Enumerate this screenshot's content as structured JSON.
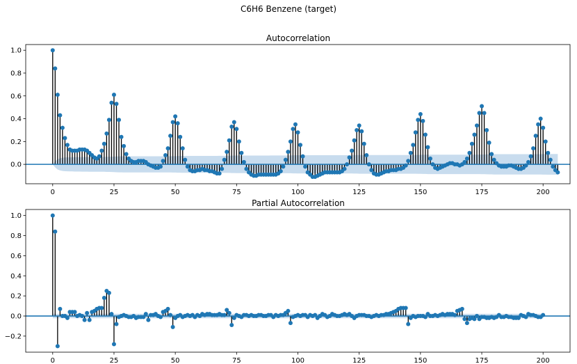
{
  "suptitle": "C6H6 Benzene (target)",
  "colors": {
    "marker": "#1f77b4",
    "stem": "#000000",
    "confidence_band": "#c2d8ec",
    "zero_line": "#1f77b4",
    "axes_frame": "#000000"
  },
  "chart_data": [
    {
      "type": "stem",
      "title": "Autocorrelation",
      "xlabel": "",
      "ylabel": "",
      "xlim": [
        -11,
        211
      ],
      "ylim": [
        -0.17,
        1.05
      ],
      "xticks": [
        0,
        25,
        50,
        75,
        100,
        125,
        150,
        175,
        200
      ],
      "yticks": [
        -0.0,
        0.2,
        0.4,
        0.6,
        0.8,
        1.0
      ],
      "ytick_labels": [
        "0.0",
        "0.2",
        "0.4",
        "0.6",
        "0.8",
        "1.0"
      ],
      "grid": false,
      "x_start": 0,
      "values": [
        1.0,
        0.84,
        0.61,
        0.43,
        0.32,
        0.23,
        0.17,
        0.13,
        0.12,
        0.12,
        0.12,
        0.13,
        0.13,
        0.13,
        0.12,
        0.1,
        0.08,
        0.06,
        0.05,
        0.07,
        0.12,
        0.18,
        0.27,
        0.39,
        0.54,
        0.61,
        0.53,
        0.39,
        0.24,
        0.16,
        0.09,
        0.05,
        0.03,
        0.02,
        0.02,
        0.03,
        0.03,
        0.03,
        0.02,
        0.0,
        -0.01,
        -0.02,
        -0.03,
        -0.03,
        -0.02,
        0.03,
        0.08,
        0.14,
        0.25,
        0.37,
        0.42,
        0.36,
        0.24,
        0.14,
        0.04,
        -0.02,
        -0.05,
        -0.06,
        -0.06,
        -0.05,
        -0.05,
        -0.04,
        -0.05,
        -0.05,
        -0.06,
        -0.06,
        -0.07,
        -0.08,
        -0.08,
        -0.04,
        0.04,
        0.11,
        0.21,
        0.33,
        0.37,
        0.31,
        0.2,
        0.1,
        0.02,
        -0.04,
        -0.07,
        -0.09,
        -0.1,
        -0.1,
        -0.09,
        -0.09,
        -0.09,
        -0.09,
        -0.09,
        -0.09,
        -0.09,
        -0.09,
        -0.08,
        -0.06,
        -0.02,
        0.04,
        0.11,
        0.2,
        0.31,
        0.35,
        0.28,
        0.17,
        0.07,
        -0.02,
        -0.07,
        -0.09,
        -0.11,
        -0.11,
        -0.1,
        -0.09,
        -0.08,
        -0.07,
        -0.07,
        -0.07,
        -0.07,
        -0.07,
        -0.07,
        -0.07,
        -0.06,
        -0.04,
        0.0,
        0.06,
        0.12,
        0.21,
        0.3,
        0.34,
        0.29,
        0.18,
        0.08,
        0.0,
        -0.05,
        -0.08,
        -0.09,
        -0.09,
        -0.08,
        -0.07,
        -0.06,
        -0.06,
        -0.05,
        -0.05,
        -0.05,
        -0.04,
        -0.04,
        -0.03,
        -0.01,
        0.03,
        0.1,
        0.17,
        0.28,
        0.39,
        0.44,
        0.38,
        0.26,
        0.15,
        0.05,
        0.0,
        -0.03,
        -0.04,
        -0.03,
        -0.02,
        -0.01,
        0.0,
        0.01,
        0.01,
        0.0,
        0.0,
        -0.01,
        0.0,
        0.02,
        0.05,
        0.1,
        0.18,
        0.26,
        0.34,
        0.45,
        0.51,
        0.45,
        0.3,
        0.19,
        0.09,
        0.04,
        0.01,
        -0.01,
        -0.02,
        -0.02,
        -0.02,
        -0.01,
        -0.01,
        -0.02,
        -0.03,
        -0.04,
        -0.04,
        -0.03,
        -0.01,
        0.02,
        0.07,
        0.14,
        0.25,
        0.35,
        0.4,
        0.32,
        0.2,
        0.1,
        0.04,
        -0.02,
        -0.05,
        -0.07
      ],
      "confidence_upper": [
        0.0,
        0.027,
        0.045,
        0.053,
        0.058,
        0.06,
        0.061,
        0.062,
        0.062,
        0.063,
        0.063,
        0.063,
        0.064,
        0.064,
        0.064,
        0.065,
        0.065,
        0.065,
        0.065,
        0.065,
        0.065,
        0.065,
        0.066,
        0.066,
        0.067,
        0.068,
        0.069,
        0.07,
        0.07,
        0.071,
        0.071,
        0.071,
        0.071,
        0.071,
        0.071,
        0.071,
        0.071,
        0.071,
        0.071,
        0.071,
        0.071,
        0.071,
        0.071,
        0.071,
        0.071,
        0.071,
        0.071,
        0.071,
        0.071,
        0.072,
        0.072,
        0.073,
        0.073,
        0.074,
        0.074,
        0.074,
        0.074,
        0.074,
        0.074,
        0.074,
        0.074,
        0.074,
        0.074,
        0.074,
        0.074,
        0.074,
        0.074,
        0.074,
        0.075,
        0.075,
        0.075,
        0.075,
        0.075,
        0.076,
        0.076,
        0.077,
        0.077,
        0.077,
        0.077,
        0.077,
        0.077,
        0.077,
        0.077,
        0.077,
        0.077,
        0.077,
        0.077,
        0.077,
        0.077,
        0.078,
        0.078,
        0.078,
        0.078,
        0.078,
        0.078,
        0.078,
        0.078,
        0.078,
        0.079,
        0.079,
        0.08,
        0.08,
        0.08,
        0.08,
        0.08,
        0.08,
        0.08,
        0.08,
        0.08,
        0.08,
        0.08,
        0.08,
        0.08,
        0.08,
        0.08,
        0.08,
        0.08,
        0.08,
        0.08,
        0.08,
        0.08,
        0.08,
        0.08,
        0.081,
        0.081,
        0.082,
        0.082,
        0.082,
        0.082,
        0.082,
        0.082,
        0.082,
        0.082,
        0.082,
        0.082,
        0.082,
        0.082,
        0.082,
        0.082,
        0.082,
        0.082,
        0.082,
        0.082,
        0.082,
        0.082,
        0.082,
        0.082,
        0.082,
        0.082,
        0.083,
        0.083,
        0.084,
        0.084,
        0.085,
        0.085,
        0.085,
        0.085,
        0.085,
        0.085,
        0.085,
        0.085,
        0.085,
        0.085,
        0.085,
        0.085,
        0.085,
        0.085,
        0.085,
        0.085,
        0.085,
        0.085,
        0.085,
        0.085,
        0.085,
        0.085,
        0.086,
        0.086,
        0.087,
        0.088,
        0.088,
        0.089,
        0.089,
        0.089,
        0.089,
        0.089,
        0.089,
        0.089,
        0.089,
        0.089,
        0.089,
        0.089,
        0.089,
        0.089,
        0.089,
        0.089,
        0.089,
        0.089,
        0.089,
        0.089,
        0.089,
        0.09,
        0.09,
        0.091,
        0.091,
        0.091,
        0.091,
        0.091,
        0.091,
        0.091,
        0.091
      ]
    },
    {
      "type": "stem",
      "title": "Partial Autocorrelation",
      "xlabel": "",
      "ylabel": "",
      "xlim": [
        -11,
        211
      ],
      "ylim": [
        -0.36,
        1.06
      ],
      "xticks": [
        0,
        25,
        50,
        75,
        100,
        125,
        150,
        175,
        200
      ],
      "yticks": [
        -0.2,
        0.0,
        0.2,
        0.4,
        0.6,
        0.8,
        1.0
      ],
      "ytick_labels": [
        "−0.2",
        "0.0",
        "0.2",
        "0.4",
        "0.6",
        "0.8",
        "1.0"
      ],
      "grid": false,
      "x_start": 0,
      "values": [
        1.0,
        0.84,
        -0.3,
        0.07,
        0.0,
        0.0,
        -0.02,
        0.04,
        0.04,
        0.04,
        0.0,
        0.01,
        0.0,
        -0.04,
        0.03,
        -0.04,
        0.04,
        0.05,
        0.07,
        0.08,
        0.08,
        0.18,
        0.25,
        0.23,
        0.02,
        -0.28,
        -0.08,
        -0.01,
        0.0,
        0.01,
        0.0,
        -0.01,
        -0.01,
        0.0,
        -0.02,
        -0.01,
        -0.01,
        -0.01,
        0.02,
        -0.04,
        0.01,
        0.01,
        0.02,
        0.0,
        -0.01,
        0.04,
        0.05,
        0.07,
        0.01,
        -0.11,
        -0.02,
        0.0,
        0.01,
        -0.01,
        0.0,
        0.01,
        0.0,
        0.01,
        -0.01,
        0.01,
        0.0,
        0.02,
        0.01,
        0.02,
        0.02,
        0.01,
        0.01,
        0.01,
        0.02,
        0.01,
        0.01,
        0.06,
        0.03,
        -0.09,
        -0.02,
        0.01,
        0.0,
        -0.01,
        0.01,
        0.01,
        0.0,
        0.01,
        0.0,
        0.0,
        0.01,
        0.01,
        0.0,
        0.0,
        0.01,
        0.01,
        -0.01,
        0.01,
        0.0,
        0.01,
        0.01,
        0.03,
        0.05,
        -0.07,
        -0.01,
        0.0,
        0.01,
        0.0,
        0.01,
        0.01,
        -0.01,
        0.01,
        0.0,
        0.01,
        -0.02,
        0.0,
        0.02,
        0.01,
        -0.01,
        0.0,
        0.02,
        0.01,
        0.0,
        0.0,
        0.01,
        0.02,
        0.01,
        0.02,
        0.0,
        -0.02,
        0.0,
        0.01,
        0.01,
        0.01,
        0.0,
        0.0,
        -0.01,
        0.0,
        0.01,
        0.0,
        0.01,
        0.01,
        0.02,
        0.02,
        0.03,
        0.04,
        0.05,
        0.07,
        0.08,
        0.08,
        0.08,
        -0.08,
        -0.02,
        0.0,
        -0.01,
        0.0,
        0.0,
        0.0,
        -0.01,
        0.02,
        0.0,
        0.0,
        0.01,
        0.0,
        0.01,
        0.02,
        0.01,
        0.02,
        0.02,
        0.02,
        0.01,
        0.05,
        0.06,
        0.07,
        -0.03,
        -0.07,
        -0.03,
        -0.02,
        -0.03,
        0.0,
        -0.03,
        -0.01,
        -0.01,
        -0.02,
        -0.02,
        -0.01,
        -0.02,
        -0.01,
        0.01,
        -0.01,
        -0.01,
        0.0,
        -0.01,
        -0.01,
        -0.02,
        -0.02,
        -0.02,
        0.01,
        0.0,
        -0.01,
        0.02,
        0.01,
        0.01,
        0.0,
        -0.01,
        -0.01,
        0.01
      ],
      "confidence_upper": 0.022
    }
  ]
}
